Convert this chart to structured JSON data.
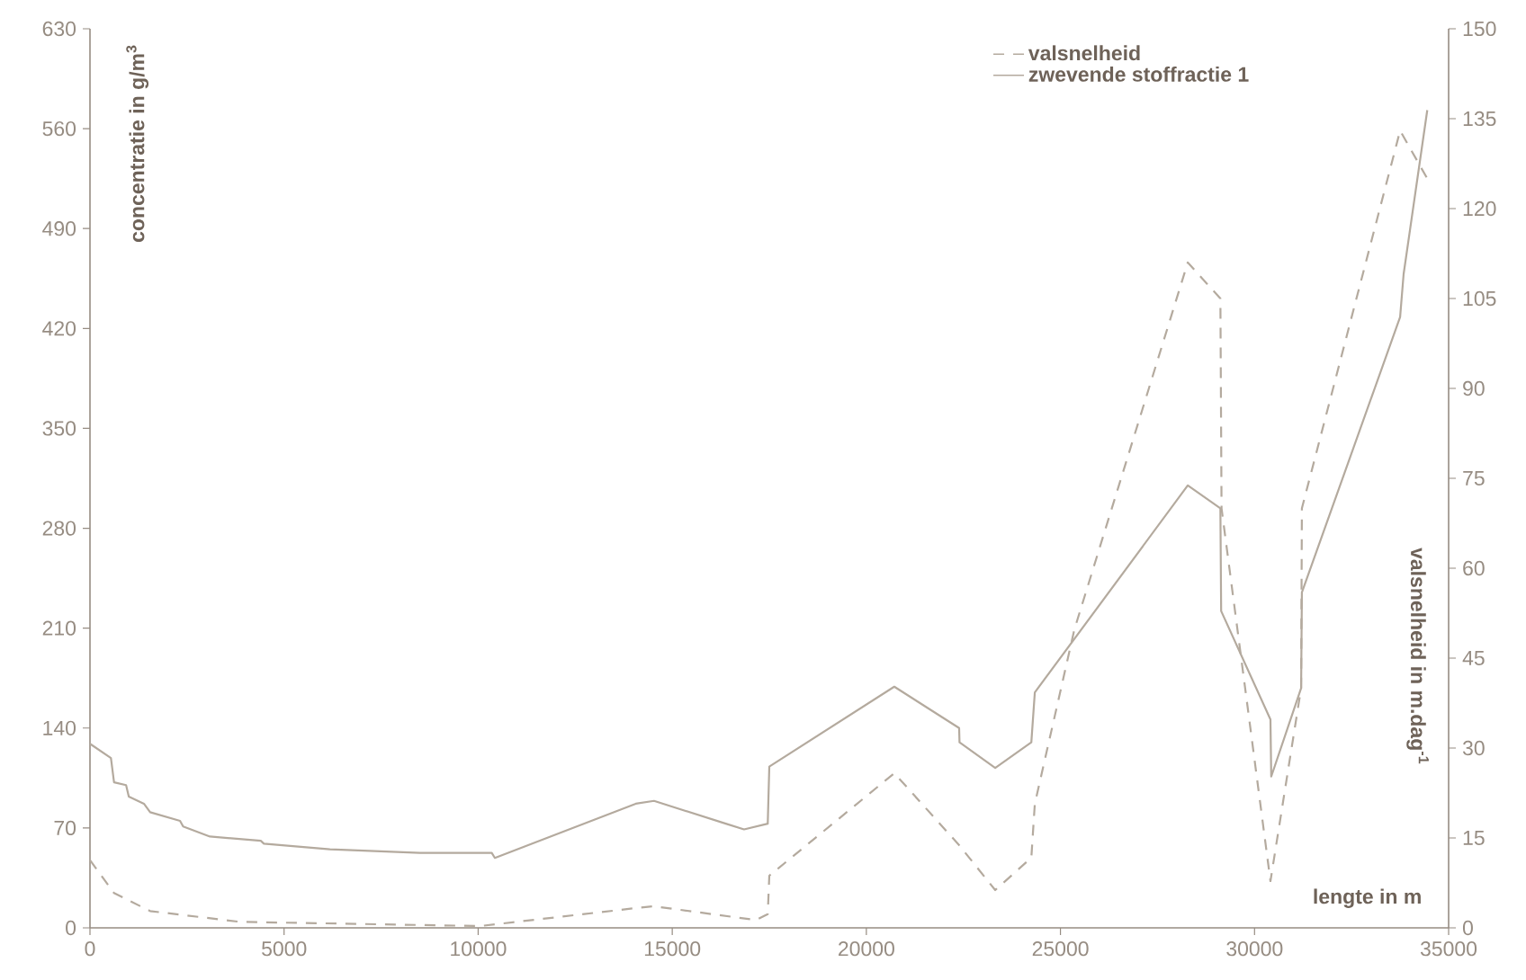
{
  "chart_data": {
    "type": "line",
    "xlabel": "lengte in m",
    "ylabel": "concentratie in g/m$^{3}$",
    "y2label": "valsnelheid in m.dag$^{-1}$",
    "xlim": [
      0,
      35000
    ],
    "xticks": [
      0,
      5000,
      10000,
      15000,
      20000,
      25000,
      30000,
      35000
    ],
    "ylim": [
      0,
      630
    ],
    "yticks": [
      0,
      70,
      140,
      210,
      280,
      350,
      420,
      490,
      560,
      630
    ],
    "y2lim": [
      0,
      150
    ],
    "y2ticks": [
      0,
      15,
      30,
      45,
      60,
      75,
      90,
      105,
      120,
      135,
      150
    ],
    "legend": "top right",
    "series": [
      {
        "name": "valsnelheid",
        "color": "#b4aa9e",
        "line_style": "dashed",
        "axis": "y2",
        "x": [
          0,
          620,
          1550,
          3860,
          10050,
          14060,
          14530,
          17160,
          17460,
          17500,
          20720,
          22390,
          23320,
          24250,
          24340,
          25360,
          28280,
          29120,
          29150,
          30410,
          31200,
          31220,
          33750,
          34450
        ],
        "values": [
          11.3,
          5.8,
          2.8,
          1,
          0.3,
          3.3,
          3.6,
          1.3,
          2.3,
          8.7,
          25.8,
          13.8,
          6.3,
          11.7,
          20.7,
          49.8,
          111,
          105,
          70,
          7.8,
          40,
          70,
          133,
          125
        ]
      },
      {
        "name": "zwevende stoffractie 1",
        "color": "#b4aa9e",
        "line_style": "solid",
        "x": [
          0,
          540,
          620,
          930,
          1000,
          1390,
          1550,
          2320,
          2400,
          3090,
          4400,
          4480,
          6180,
          8500,
          10350,
          10430,
          14060,
          14530,
          16380,
          16850,
          17460,
          17500,
          20720,
          22390,
          22400,
          23320,
          24250,
          24340,
          28280,
          29120,
          29140,
          30410,
          30430,
          31200,
          31220,
          33750,
          33840,
          34450
        ],
        "values": [
          129,
          119,
          102,
          100,
          92,
          87,
          81,
          75,
          71,
          64,
          61,
          59,
          55,
          52.5,
          52.5,
          49,
          87,
          89,
          73,
          69,
          73,
          113,
          169,
          140,
          130,
          112,
          130,
          165,
          310,
          294,
          222,
          146,
          106,
          168,
          235,
          428,
          458,
          573
        ]
      }
    ]
  }
}
